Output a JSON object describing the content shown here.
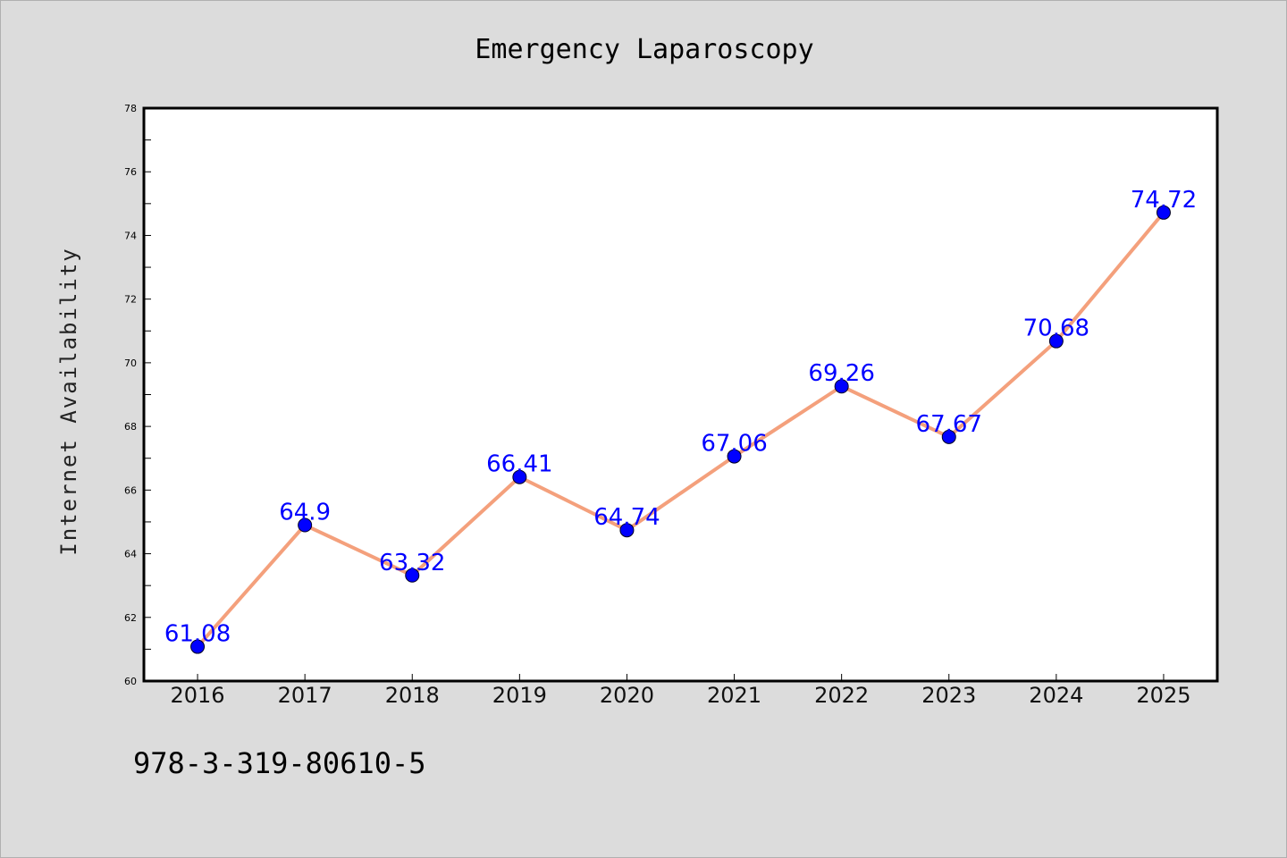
{
  "chart_data": {
    "type": "line",
    "title": "Emergency Laparoscopy",
    "xlabel": "",
    "ylabel": "Internet Availability",
    "categories": [
      "2016",
      "2017",
      "2018",
      "2019",
      "2020",
      "2021",
      "2022",
      "2023",
      "2024",
      "2025"
    ],
    "values": [
      61.08,
      64.9,
      63.32,
      66.41,
      64.74,
      67.06,
      69.26,
      67.67,
      70.68,
      74.72
    ],
    "data_labels": [
      "61.08",
      "64.9",
      "63.32",
      "66.41",
      "64.74",
      "67.06",
      "69.26",
      "67.67",
      "70.68",
      "74.72"
    ],
    "ylim": [
      60,
      78
    ],
    "yticks": [
      "60",
      "62",
      "64",
      "66",
      "68",
      "70",
      "72",
      "74",
      "76",
      "78"
    ],
    "grid": false,
    "legend": "none",
    "colors": {
      "line": "#f4a07c",
      "marker": "#0000ff",
      "data_label": "#0000ff",
      "plot_background": "#ffffff",
      "figure_background": "#dcdcdc"
    }
  },
  "footer": {
    "isbn": "978-3-319-80610-5"
  }
}
